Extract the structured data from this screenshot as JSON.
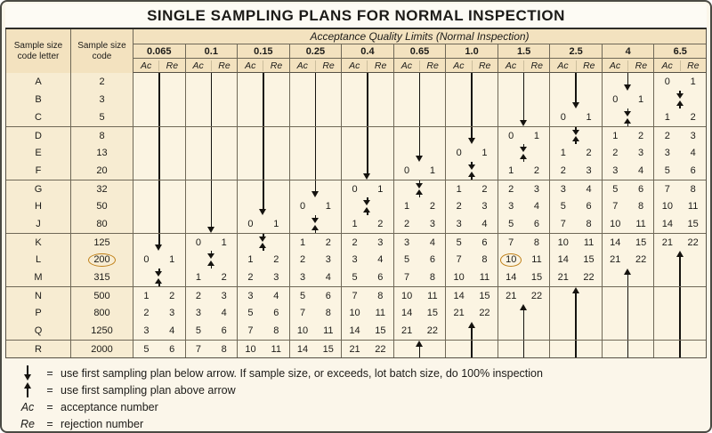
{
  "title": "SINGLE SAMPLING PLANS FOR NORMAL INSPECTION",
  "table": {
    "col1_header": "Sample size code letter",
    "col2_header": "Sample size code",
    "span_header": "Acceptance Quality Limits (Normal Inspection)",
    "aql_labels": [
      "0.065",
      "0.1",
      "0.15",
      "0.25",
      "0.4",
      "0.65",
      "1.0",
      "1.5",
      "2.5",
      "4",
      "6.5"
    ],
    "ac_label": "Ac",
    "re_label": "Re",
    "group_starts": [
      "D",
      "G",
      "K",
      "N",
      "R"
    ],
    "rows": [
      {
        "letter": "A",
        "size": "2",
        "size_circled": false,
        "circle_col": null,
        "cells": [
          "d",
          "d",
          "d",
          "d",
          "d",
          "d",
          "d",
          "d",
          "d",
          "dh",
          "0,1"
        ]
      },
      {
        "letter": "B",
        "size": "3",
        "size_circled": false,
        "circle_col": null,
        "cells": [
          "d",
          "d",
          "d",
          "d",
          "d",
          "d",
          "d",
          "d",
          "dh",
          "0,1",
          "x"
        ]
      },
      {
        "letter": "C",
        "size": "5",
        "size_circled": false,
        "circle_col": null,
        "cells": [
          "d",
          "d",
          "d",
          "d",
          "d",
          "d",
          "d",
          "dh",
          "0,1",
          "x",
          "1,2"
        ]
      },
      {
        "letter": "D",
        "size": "8",
        "size_circled": false,
        "circle_col": null,
        "cells": [
          "d",
          "d",
          "d",
          "d",
          "d",
          "d",
          "dh",
          "0,1",
          "x",
          "1,2",
          "2,3"
        ]
      },
      {
        "letter": "E",
        "size": "13",
        "size_circled": false,
        "circle_col": null,
        "cells": [
          "d",
          "d",
          "d",
          "d",
          "d",
          "dh",
          "0,1",
          "x",
          "1,2",
          "2,3",
          "3,4"
        ]
      },
      {
        "letter": "F",
        "size": "20",
        "size_circled": false,
        "circle_col": null,
        "cells": [
          "d",
          "d",
          "d",
          "d",
          "dh",
          "0,1",
          "x",
          "1,2",
          "2,3",
          "3,4",
          "5,6"
        ]
      },
      {
        "letter": "G",
        "size": "32",
        "size_circled": false,
        "circle_col": null,
        "cells": [
          "d",
          "d",
          "d",
          "dh",
          "0,1",
          "x",
          "1,2",
          "2,3",
          "3,4",
          "5,6",
          "7,8"
        ]
      },
      {
        "letter": "H",
        "size": "50",
        "size_circled": false,
        "circle_col": null,
        "cells": [
          "d",
          "d",
          "dh",
          "0,1",
          "x",
          "1,2",
          "2,3",
          "3,4",
          "5,6",
          "7,8",
          "10,11"
        ]
      },
      {
        "letter": "J",
        "size": "80",
        "size_circled": false,
        "circle_col": null,
        "cells": [
          "d",
          "dh",
          "0,1",
          "x",
          "1,2",
          "2,3",
          "3,4",
          "5,6",
          "7,8",
          "10,11",
          "14,15"
        ]
      },
      {
        "letter": "K",
        "size": "125",
        "size_circled": false,
        "circle_col": null,
        "cells": [
          "dh",
          "0,1",
          "x",
          "1,2",
          "2,3",
          "3,4",
          "5,6",
          "7,8",
          "10,11",
          "14,15",
          "21,22"
        ]
      },
      {
        "letter": "L",
        "size": "200",
        "size_circled": true,
        "circle_col": 7,
        "cells": [
          "0,1",
          "x",
          "1,2",
          "2,3",
          "3,4",
          "5,6",
          "7,8",
          "10,11",
          "14,15",
          "21,22",
          "uh"
        ]
      },
      {
        "letter": "M",
        "size": "315",
        "size_circled": false,
        "circle_col": null,
        "cells": [
          "x",
          "1,2",
          "2,3",
          "3,4",
          "5,6",
          "7,8",
          "10,11",
          "14,15",
          "21,22",
          "uh",
          "u"
        ]
      },
      {
        "letter": "N",
        "size": "500",
        "size_circled": false,
        "circle_col": null,
        "cells": [
          "1,2",
          "2,3",
          "3,4",
          "5,6",
          "7,8",
          "10,11",
          "14,15",
          "21,22",
          "uh",
          "u",
          "u"
        ]
      },
      {
        "letter": "P",
        "size": "800",
        "size_circled": false,
        "circle_col": null,
        "cells": [
          "2,3",
          "3,4",
          "5,6",
          "7,8",
          "10,11",
          "14,15",
          "21,22",
          "uh",
          "u",
          "u",
          "u"
        ]
      },
      {
        "letter": "Q",
        "size": "1250",
        "size_circled": false,
        "circle_col": null,
        "cells": [
          "3,4",
          "5,6",
          "7,8",
          "10,11",
          "14,15",
          "21,22",
          "uh",
          "u",
          "u",
          "u",
          "u"
        ]
      },
      {
        "letter": "R",
        "size": "2000",
        "size_circled": false,
        "circle_col": null,
        "cells": [
          "5,6",
          "7,8",
          "10,11",
          "14,15",
          "21,22",
          "uh",
          "u",
          "u",
          "u",
          "u",
          "u"
        ]
      }
    ]
  },
  "legend": {
    "equals": "=",
    "items": [
      {
        "symbol": "down-arrow",
        "text": "use first sampling plan below arrow. If sample size, or exceeds, lot batch size, do 100% inspection"
      },
      {
        "symbol": "up-arrow",
        "text": "use first sampling plan above arrow"
      },
      {
        "symbol": "Ac",
        "text": "acceptance number"
      },
      {
        "symbol": "Re",
        "text": "rejection number"
      }
    ]
  },
  "colors": {
    "page_bg": "#fbf6ea",
    "header_bg": "#f3e2bf",
    "cell_bg": "#fbf4e2",
    "table_line": "#6f6857",
    "circle_accent": "#c08018",
    "arrow": "#15130f"
  }
}
